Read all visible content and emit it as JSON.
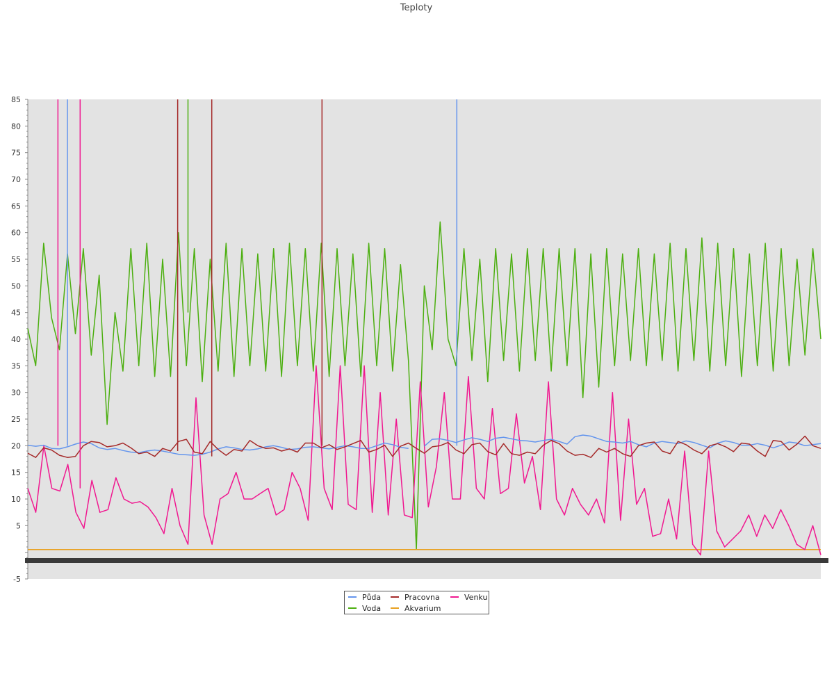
{
  "chart_data": {
    "type": "line",
    "title": "Teploty",
    "xlabel": "",
    "ylabel": "",
    "ylim": [
      -5,
      85
    ],
    "yticks": [
      -5,
      5,
      10,
      15,
      20,
      25,
      30,
      35,
      40,
      45,
      50,
      55,
      60,
      65,
      70,
      75,
      80,
      85
    ],
    "grid": false,
    "legend_position": "bottom-center",
    "x_range": [
      0,
      100
    ],
    "series": [
      {
        "name": "Půda",
        "color": "#6495ed",
        "values": [
          20.1,
          19.9,
          20.1,
          19.5,
          19.4,
          19.8,
          20.3,
          20.7,
          20.4,
          19.6,
          19.3,
          19.5,
          19.1,
          18.8,
          18.7,
          19.0,
          19.2,
          19.0,
          18.7,
          18.4,
          18.3,
          18.2,
          18.4,
          18.8,
          19.4,
          19.8,
          19.6,
          19.3,
          19.2,
          19.4,
          19.8,
          20.0,
          19.7,
          19.3,
          19.4,
          19.7,
          19.8,
          19.6,
          19.4,
          19.7,
          20.0,
          19.8,
          19.5,
          19.5,
          20.0,
          20.5,
          20.2,
          19.7,
          19.5,
          null,
          19.9,
          21.2,
          21.3,
          21.0,
          20.6,
          21.1,
          21.5,
          21.2,
          20.8,
          21.4,
          21.6,
          21.3,
          21.0,
          20.9,
          20.7,
          21.0,
          21.2,
          20.8,
          20.3,
          21.7,
          22.0,
          21.8,
          21.3,
          20.8,
          20.7,
          20.5,
          20.8,
          20.2,
          19.8,
          20.5,
          20.8,
          20.6,
          20.4,
          20.9,
          20.6,
          20.1,
          19.6,
          20.5,
          20.9,
          20.6,
          20.1,
          20.1,
          20.4,
          20.1,
          19.6,
          20.1,
          20.7,
          20.5,
          20.0,
          20.2,
          20.4
        ]
      },
      {
        "name": "Pracovna",
        "color": "#a52a2a",
        "values": [
          18.6,
          17.8,
          19.6,
          19.2,
          18.2,
          17.8,
          18.0,
          20.0,
          20.8,
          20.6,
          19.8,
          20.0,
          20.5,
          19.6,
          18.5,
          18.8,
          18.0,
          19.5,
          19.0,
          20.8,
          21.2,
          18.8,
          18.5,
          20.8,
          19.3,
          18.2,
          19.3,
          19.0,
          21.0,
          20.0,
          19.5,
          19.6,
          19.0,
          19.4,
          18.8,
          20.5,
          20.5,
          19.6,
          20.2,
          19.3,
          19.8,
          20.4,
          21.0,
          18.8,
          19.3,
          20.1,
          18.0,
          19.9,
          20.5,
          19.5,
          18.6,
          19.8,
          20.0,
          20.6,
          19.2,
          18.5,
          20.2,
          20.5,
          18.9,
          18.3,
          20.4,
          18.5,
          18.2,
          18.8,
          18.5,
          20.1,
          21.0,
          20.4,
          19.0,
          18.2,
          18.4,
          17.8,
          19.5,
          18.8,
          19.5,
          18.5,
          18.0,
          20.0,
          20.5,
          20.7,
          19.0,
          18.5,
          20.8,
          20.2,
          19.2,
          18.5,
          20.0,
          20.4,
          19.8,
          18.9,
          20.5,
          20.3,
          19.0,
          18.0,
          21.0,
          20.8,
          19.2,
          20.3,
          21.8,
          20.0,
          19.5
        ]
      },
      {
        "name": "Voda",
        "color": "#4caf10",
        "values": [
          42,
          35,
          58,
          44,
          38,
          56,
          41,
          57,
          37,
          52,
          24,
          45,
          34,
          57,
          35,
          58,
          33,
          55,
          33,
          60,
          35,
          57,
          32,
          55,
          34,
          58,
          33,
          57,
          35,
          56,
          34,
          57,
          33,
          58,
          35,
          57,
          34,
          58,
          33,
          57,
          35,
          56,
          33,
          58,
          35,
          57,
          34,
          54,
          36,
          0.5,
          50,
          38,
          62,
          40,
          35,
          57,
          36,
          55,
          32,
          57,
          36,
          56,
          34,
          57,
          36,
          57,
          34,
          57,
          35,
          57,
          29,
          56,
          31,
          57,
          35,
          56,
          36,
          57,
          35,
          56,
          36,
          58,
          34,
          57,
          36,
          59,
          34,
          58,
          35,
          57,
          33,
          56,
          35,
          58,
          34,
          57,
          35,
          55,
          37,
          57,
          40
        ]
      },
      {
        "name": "Akvarium",
        "color": "#e8a020",
        "values": [
          0.5,
          0.5
        ]
      },
      {
        "name": "Venku",
        "color": "#f01890",
        "values": [
          12,
          7.5,
          20,
          12,
          11.5,
          16.5,
          7.5,
          4.5,
          13.5,
          7.5,
          8,
          14,
          10,
          9.2,
          9.5,
          8.5,
          6.5,
          3.5,
          12,
          5,
          1.5,
          29,
          7,
          1.5,
          10,
          11,
          15,
          10,
          10,
          11,
          12,
          7,
          8,
          15,
          12,
          6,
          35,
          12,
          8,
          35,
          9,
          8,
          35,
          7.5,
          30,
          7,
          25,
          7,
          6.5,
          32,
          8.5,
          16,
          30,
          10,
          10,
          33,
          12,
          10,
          27,
          11,
          12,
          26,
          13,
          18,
          8,
          32,
          10,
          7,
          12,
          9,
          7,
          10,
          5.5,
          30,
          6,
          25,
          9,
          12,
          3,
          3.5,
          10,
          2.5,
          19,
          1.5,
          -0.5,
          19,
          4,
          1,
          2.5,
          4,
          7,
          3,
          7,
          4.5,
          8,
          5,
          1.5,
          0.5,
          5,
          -0.5
        ]
      }
    ],
    "spikes": [
      {
        "series": "Venku",
        "x": 3.8,
        "from": 20,
        "to": 85
      },
      {
        "series": "Venku",
        "x": 6.6,
        "from": 12,
        "to": 85
      },
      {
        "series": "Půda",
        "x": 5.0,
        "from": 20,
        "to": 85
      },
      {
        "series": "Pracovna",
        "x": 18.9,
        "from": 19,
        "to": 85
      },
      {
        "series": "Voda",
        "x": 20.2,
        "from": 45,
        "to": 85
      },
      {
        "series": "Pracovna",
        "x": 23.2,
        "from": 18,
        "to": 85
      },
      {
        "series": "Pracovna",
        "x": 37.1,
        "from": 20,
        "to": 85
      },
      {
        "series": "Půda",
        "x": 54.1,
        "from": 20,
        "to": 85
      }
    ]
  },
  "legend": {
    "items": [
      {
        "label": "Půda",
        "color": "#6495ed"
      },
      {
        "label": "Pracovna",
        "color": "#a52a2a"
      },
      {
        "label": "Venku",
        "color": "#f01890"
      },
      {
        "label": "Voda",
        "color": "#4caf10"
      },
      {
        "label": "Akvarium",
        "color": "#e8a020"
      }
    ]
  }
}
